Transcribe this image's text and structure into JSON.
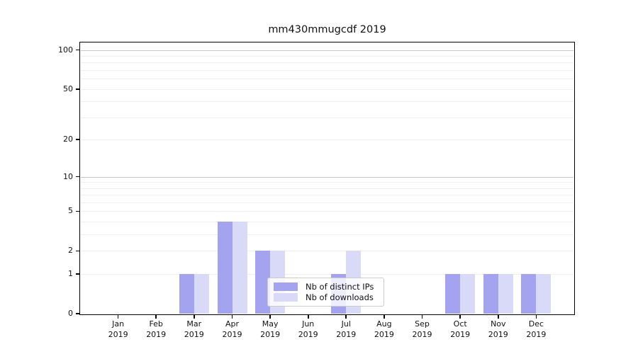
{
  "chart_data": {
    "type": "bar",
    "title": "mm430mmugcdf 2019",
    "categories": [
      "Jan",
      "Feb",
      "Mar",
      "Apr",
      "May",
      "Jun",
      "Jul",
      "Aug",
      "Sep",
      "Oct",
      "Nov",
      "Dec"
    ],
    "category_year": "2019",
    "series": [
      {
        "name": "Nb of distinct IPs",
        "color": "#a3a3f0",
        "values": [
          0,
          0,
          1,
          4,
          2,
          0,
          1,
          0,
          0,
          1,
          1,
          1
        ]
      },
      {
        "name": "Nb of downloads",
        "color": "#d9d9f8",
        "values": [
          0,
          0,
          1,
          4,
          2,
          0,
          2,
          0,
          0,
          1,
          1,
          1
        ]
      }
    ],
    "xlabel": "",
    "ylabel": "",
    "y_scale": "log1p",
    "y_ticks": [
      0,
      1,
      2,
      5,
      10,
      20,
      50,
      100
    ],
    "y_gridline_values": [
      1,
      2,
      3,
      4,
      5,
      6,
      7,
      8,
      9,
      10,
      20,
      30,
      40,
      50,
      60,
      70,
      80,
      90,
      100
    ],
    "y_decade_gridlines": [
      10,
      100
    ],
    "ylim": [
      0,
      113
    ],
    "grid": "horizontal",
    "legend_position": "inside-lower-center",
    "colors": {
      "gridline": "#efefef",
      "decade_gridline": "#c8c8c8",
      "axis": "#000000",
      "text": "#111111",
      "background": "#ffffff"
    }
  }
}
